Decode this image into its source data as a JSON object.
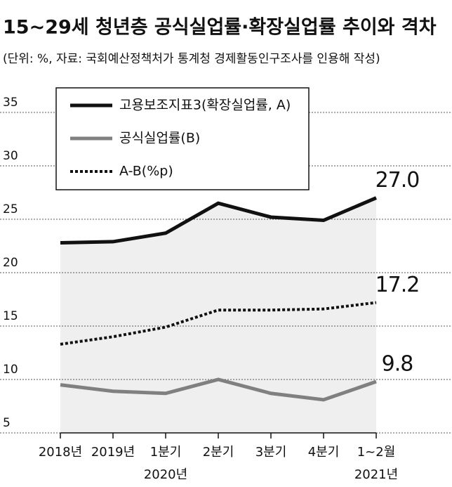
{
  "chart_data": {
    "type": "line",
    "title": "15~29세 청년층 공식실업률·확장실업률 추이와 격차",
    "subtitle": "(단위: %, 자료: 국회예산정책처가 통계청 경제활동인구조사를 인용해 작성)",
    "categories": [
      "2018년",
      "2019년",
      "1분기",
      "2분기",
      "3분기",
      "4분기",
      "1~2월"
    ],
    "year_labels": [
      null,
      null,
      "2020년",
      null,
      null,
      null,
      "2021년"
    ],
    "ylim": [
      5,
      35
    ],
    "yticks": [
      5,
      10,
      15,
      20,
      25,
      30,
      35
    ],
    "grid": true,
    "series": [
      {
        "name": "고용보조지표3(확장실업률, A)",
        "color": "#111111",
        "dash": "solid",
        "fill": "#efefef",
        "values": [
          22.8,
          22.9,
          23.7,
          26.5,
          25.2,
          24.9,
          27.0
        ],
        "value_labels": [
          null,
          null,
          null,
          null,
          null,
          null,
          "27.0"
        ]
      },
      {
        "name": "공식실업률(B)",
        "color": "#808080",
        "dash": "solid",
        "values": [
          9.5,
          8.9,
          8.7,
          10.0,
          8.7,
          8.1,
          9.8
        ],
        "value_labels": [
          null,
          null,
          null,
          null,
          null,
          null,
          "9.8"
        ]
      },
      {
        "name": "A-B(%p)",
        "color": "#111111",
        "dash": "dotted",
        "values": [
          13.3,
          14.0,
          14.9,
          16.5,
          16.5,
          16.6,
          17.2
        ],
        "value_labels": [
          null,
          null,
          null,
          null,
          null,
          null,
          "17.2"
        ]
      }
    ]
  }
}
